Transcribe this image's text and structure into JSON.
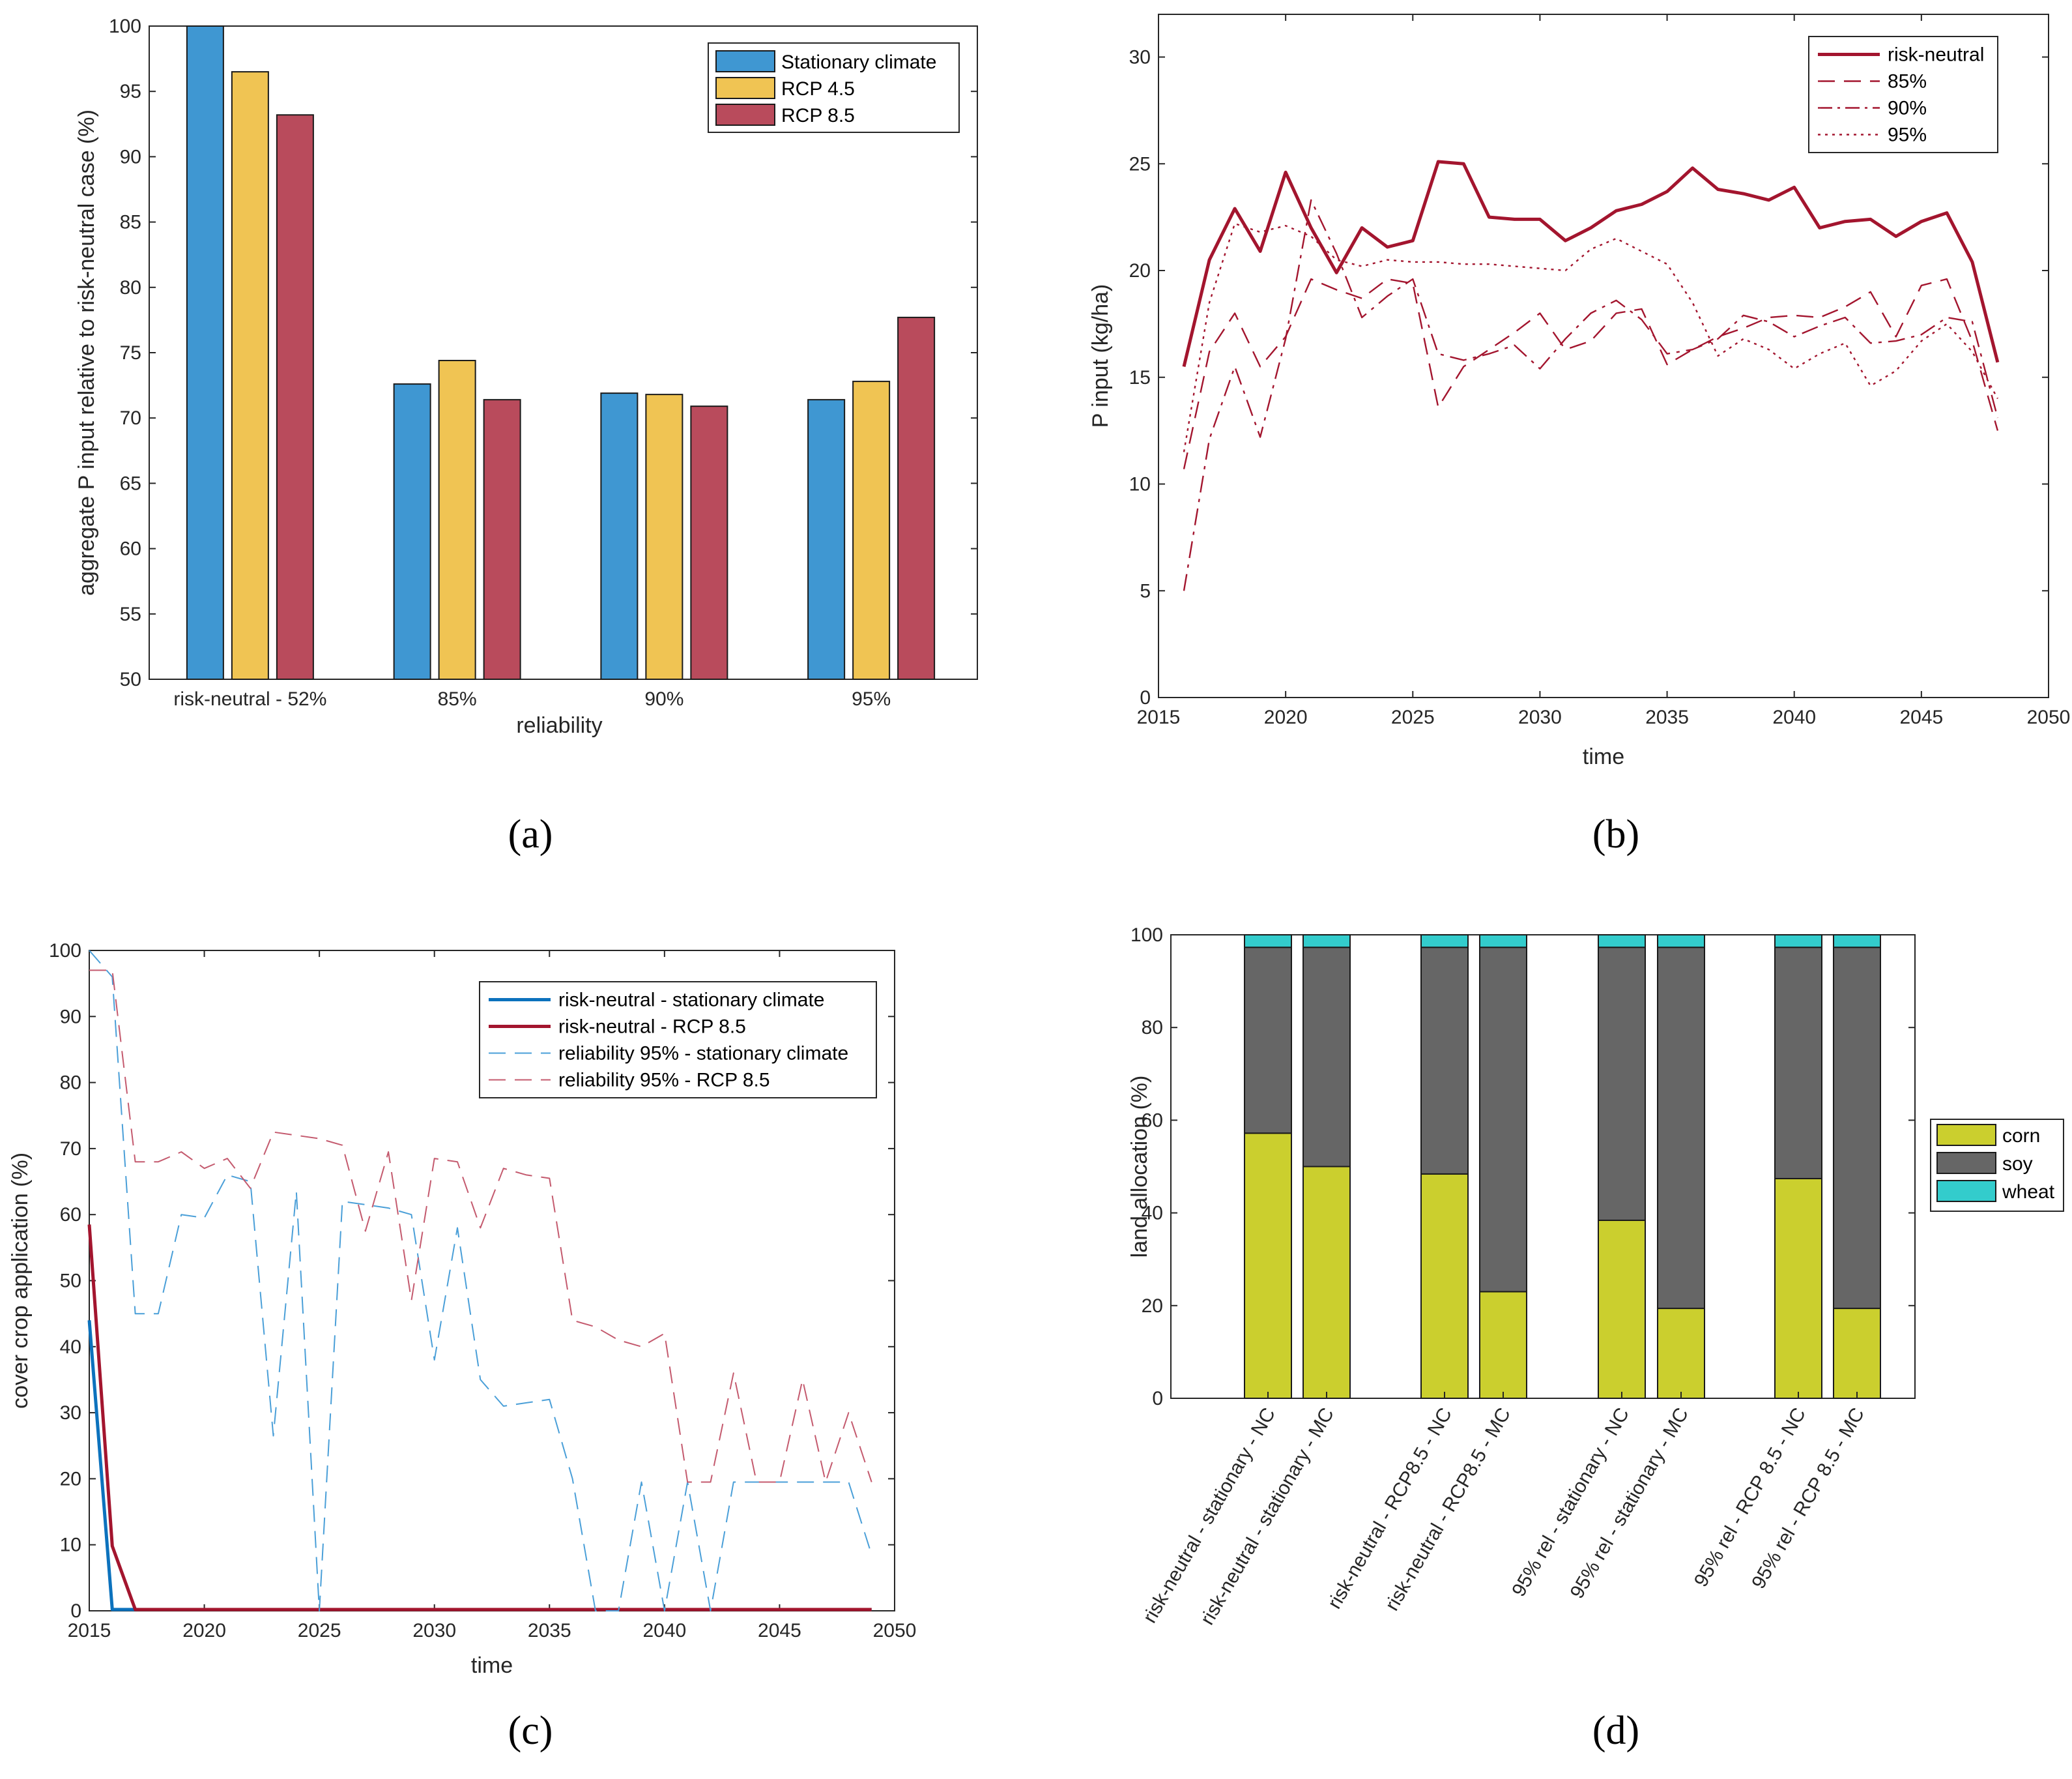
{
  "chart_data": [
    {
      "type": "bar",
      "panel": "a",
      "caption": "(a)",
      "xlabel": "reliability",
      "ylabel": "aggregate P input relative to risk-neutral case (%)",
      "ylim": [
        50,
        100
      ],
      "yticks": [
        50,
        55,
        60,
        65,
        70,
        75,
        80,
        85,
        90,
        95,
        100
      ],
      "categories": [
        "risk-neutral - 52%",
        "85%",
        "90%",
        "95%"
      ],
      "series": [
        {
          "name": "Stationary climate",
          "color": "#3f97d2",
          "values": [
            100,
            72.6,
            71.9,
            71.4
          ]
        },
        {
          "name": "RCP 4.5",
          "color": "#f0c453",
          "values": [
            96.5,
            74.4,
            71.8,
            72.8
          ]
        },
        {
          "name": "RCP 8.5",
          "color": "#b94b5c",
          "values": [
            93.2,
            71.4,
            70.9,
            77.7
          ]
        }
      ],
      "legend_position": "top-right"
    },
    {
      "type": "line",
      "panel": "b",
      "caption": "(b)",
      "xlabel": "time",
      "ylabel": "P input (kg/ha)",
      "xlim": [
        2015,
        2050
      ],
      "ylim": [
        0,
        32
      ],
      "xticks": [
        2015,
        2020,
        2025,
        2030,
        2035,
        2040,
        2045,
        2050
      ],
      "yticks": [
        0,
        5,
        10,
        15,
        20,
        25,
        30
      ],
      "x": [
        2016,
        2017,
        2018,
        2019,
        2020,
        2021,
        2022,
        2023,
        2024,
        2025,
        2026,
        2027,
        2028,
        2029,
        2030,
        2031,
        2032,
        2033,
        2034,
        2035,
        2036,
        2037,
        2038,
        2039,
        2040,
        2041,
        2042,
        2043,
        2044,
        2045,
        2046,
        2047,
        2048
      ],
      "series": [
        {
          "name": "risk-neutral",
          "dash": "solid",
          "color": "#a3152e",
          "values": [
            15.5,
            20.5,
            22.9,
            20.9,
            24.6,
            22,
            19.9,
            22,
            21.1,
            21.4,
            25.1,
            25,
            22.5,
            22.4,
            22.4,
            21.4,
            22,
            22.8,
            23.1,
            23.7,
            24.8,
            23.8,
            23.6,
            23.3,
            23.9,
            22,
            22.3,
            22.4,
            21.6,
            22.3,
            22.7,
            20.4,
            15.7
          ]
        },
        {
          "name": "85%",
          "dash": "dashed",
          "color": "#a3152e",
          "values": [
            10.7,
            16.2,
            18,
            15.5,
            16.9,
            19.6,
            19.1,
            18.7,
            19.6,
            19.4,
            13.6,
            15.5,
            16.3,
            17.1,
            18,
            16.3,
            16.7,
            18,
            18.2,
            15.6,
            16.3,
            16.9,
            17.3,
            17.8,
            17.9,
            17.8,
            18.3,
            19,
            16.9,
            19.3,
            19.6,
            16.7,
            12.5
          ]
        },
        {
          "name": "90%",
          "dash": "dashdot",
          "color": "#a3152e",
          "values": [
            5,
            12.1,
            15.5,
            12.2,
            16.8,
            23.3,
            20.8,
            17.8,
            18.8,
            19.6,
            16.1,
            15.8,
            16.1,
            16.5,
            15.4,
            16.8,
            18,
            18.6,
            17.7,
            16.1,
            16.3,
            16.8,
            17.9,
            17.6,
            16.9,
            17.4,
            17.8,
            16.6,
            16.7,
            17,
            17.8,
            17.6,
            13.1
          ]
        },
        {
          "name": "95%",
          "dash": "dotted",
          "color": "#a3152e",
          "values": [
            11.5,
            18.5,
            22.2,
            21.8,
            22.1,
            21.6,
            20.5,
            20.2,
            20.5,
            20.4,
            20.4,
            20.3,
            20.3,
            20.2,
            20.1,
            20,
            21,
            21.5,
            20.9,
            20.3,
            18.5,
            16,
            16.8,
            16.3,
            15.4,
            16.1,
            16.6,
            14.6,
            15.3,
            16.7,
            17.5,
            16.2,
            14
          ]
        }
      ],
      "legend_position": "top-right"
    },
    {
      "type": "line",
      "panel": "c",
      "caption": "(c)",
      "xlabel": "time",
      "ylabel": "cover crop application (%)",
      "xlim": [
        2015,
        2050
      ],
      "ylim": [
        0,
        100
      ],
      "xticks": [
        2015,
        2020,
        2025,
        2030,
        2035,
        2040,
        2045,
        2050
      ],
      "yticks": [
        0,
        10,
        20,
        30,
        40,
        50,
        60,
        70,
        80,
        90,
        100
      ],
      "x": [
        2015,
        2016,
        2017,
        2018,
        2019,
        2020,
        2021,
        2022,
        2023,
        2024,
        2025,
        2026,
        2027,
        2028,
        2029,
        2030,
        2031,
        2032,
        2033,
        2034,
        2035,
        2036,
        2037,
        2038,
        2039,
        2040,
        2041,
        2042,
        2043,
        2044,
        2045,
        2046,
        2047,
        2048,
        2049
      ],
      "series": [
        {
          "name": "risk-neutral - stationary climate",
          "dash": "solid",
          "width": "thick",
          "color": "#0c72bd",
          "values": [
            44,
            0.2,
            0.2,
            0.2,
            0.2,
            0.2,
            0.2,
            0.2,
            0.2,
            0.2,
            0.2,
            0.2,
            0.2,
            0.2,
            0.2,
            0.2,
            0.2,
            0.2,
            0.2,
            0.2,
            0.2,
            0.2,
            0.2,
            0.2,
            0.2,
            0.2,
            0.2,
            0.2,
            0.2,
            0.2,
            0.2,
            0.2,
            0.2,
            0.2,
            0.2
          ]
        },
        {
          "name": "risk-neutral - RCP 8.5",
          "dash": "solid",
          "width": "thick",
          "color": "#a3152e",
          "values": [
            58.5,
            9.8,
            0.2,
            0.2,
            0.2,
            0.2,
            0.2,
            0.2,
            0.2,
            0.2,
            0.2,
            0.2,
            0.2,
            0.2,
            0.2,
            0.2,
            0.2,
            0.2,
            0.2,
            0.2,
            0.2,
            0.2,
            0.2,
            0.2,
            0.2,
            0.2,
            0.2,
            0.2,
            0.2,
            0.2,
            0.2,
            0.2,
            0.2,
            0.2,
            0.2
          ]
        },
        {
          "name": "reliability 95% - stationary climate",
          "dash": "dashed",
          "width": "thin",
          "color": "#4a9fd8",
          "values": [
            100,
            96,
            45,
            45,
            60,
            59.5,
            66,
            65,
            26.5,
            63.5,
            0,
            62,
            61.5,
            61,
            60,
            38,
            58,
            35,
            31,
            31.5,
            32,
            20,
            0,
            0,
            19.5,
            0,
            19.5,
            0,
            19.5,
            19.5,
            19.5,
            19.5,
            19.5,
            19.5,
            8.5
          ]
        },
        {
          "name": "reliability 95% - RCP 8.5",
          "dash": "dashed",
          "width": "thin",
          "color": "#c45a6e",
          "values": [
            97,
            97,
            68,
            68,
            69.5,
            67,
            68.5,
            64,
            72.5,
            72,
            71.5,
            70.5,
            57.5,
            69.5,
            47,
            68.5,
            68,
            58,
            67,
            66,
            65.5,
            44,
            43,
            41,
            40,
            42,
            19.5,
            19.5,
            36,
            19.5,
            19.5,
            35,
            19.5,
            30,
            19.5
          ]
        }
      ],
      "legend_position": "top-right"
    },
    {
      "type": "stacked-bar",
      "panel": "d",
      "caption": "(d)",
      "xlabel": "",
      "ylabel": "land allocation (%)",
      "ylim": [
        0,
        100
      ],
      "yticks": [
        0,
        20,
        40,
        60,
        80,
        100
      ],
      "categories": [
        "risk-neutral - stationary - NC",
        "risk-neutral - stationary - MC",
        "risk-neutral - RCP8.5 - NC",
        "risk-neutral - RCP8.5 - MC",
        "95% rel - stationary - NC",
        "95% rel - stationary - MC",
        "95% rel - RCP 8.5 - NC",
        "95% rel - RCP 8.5 - MC"
      ],
      "series": [
        {
          "name": "corn",
          "color": "#cbcf2e",
          "values": [
            57.2,
            50,
            48.4,
            23,
            38.4,
            19.4,
            47.4,
            19.4
          ]
        },
        {
          "name": "soy",
          "color": "#666666",
          "values": [
            40.1,
            47.3,
            48.9,
            74.3,
            58.9,
            77.9,
            49.9,
            77.9
          ]
        },
        {
          "name": "wheat",
          "color": "#33cccc",
          "values": [
            2.7,
            2.7,
            2.7,
            2.7,
            2.7,
            2.7,
            2.7,
            2.7
          ]
        }
      ],
      "legend_position": "east-outside"
    }
  ]
}
